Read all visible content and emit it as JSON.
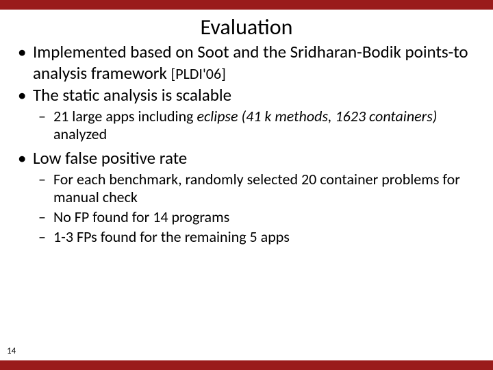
{
  "colors": {
    "bar": "#9a1b1b",
    "background": "#ffffff",
    "text": "#000000"
  },
  "typography": {
    "title_fontsize": 32,
    "bullet_fontsize": 25,
    "subbullet_fontsize": 22,
    "citation_fontsize": 22,
    "pagenum_fontsize": 13,
    "font_family": "Calibri"
  },
  "title": "Evaluation",
  "bullets": {
    "b1_pre": "Implemented based on Soot and the Sridharan-Bodik points-to analysis framework ",
    "b1_cite": "[PLDI'06]",
    "b2": "The static analysis is scalable",
    "b2_sub1_pre": "21 large apps including ",
    "b2_sub1_italic": "eclipse (41 k methods, 1623 containers) ",
    "b2_sub1_post": "analyzed",
    "b3": "Low false positive rate",
    "b3_sub1": "For each benchmark, randomly selected 20 container problems for manual check",
    "b3_sub2": "No FP found for 14 programs",
    "b3_sub3": "1-3 FPs found for the remaining 5 apps"
  },
  "page_number": "14"
}
